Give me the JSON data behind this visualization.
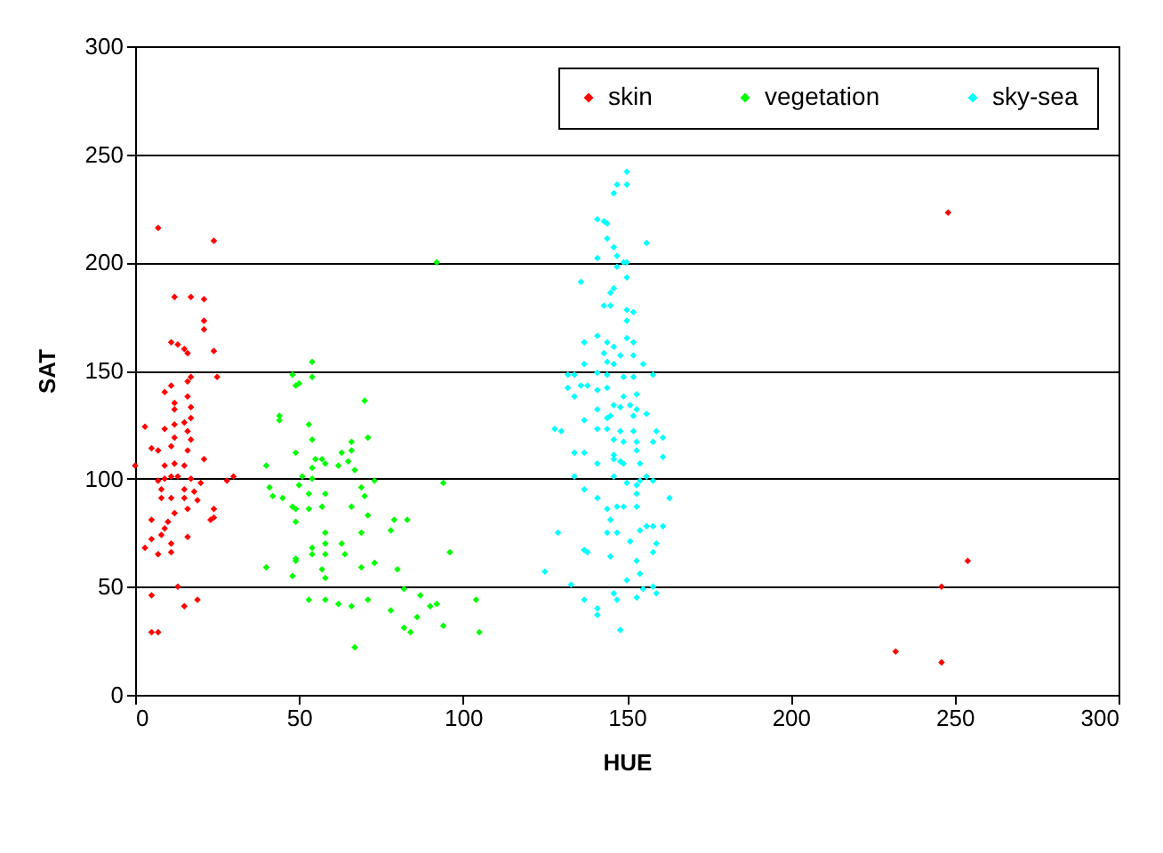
{
  "chart_data": {
    "type": "scatter",
    "xlabel": "HUE",
    "ylabel": "SAT",
    "xlim": [
      0,
      300
    ],
    "ylim": [
      0,
      300
    ],
    "xticks": [
      0,
      50,
      100,
      150,
      200,
      250,
      300
    ],
    "yticks": [
      0,
      50,
      100,
      150,
      200,
      250,
      300
    ],
    "grid": "y",
    "legend": "top right",
    "marker": "diamond",
    "series": [
      {
        "name": "skin",
        "color": "#ff0000",
        "x": [
          7,
          24,
          12,
          17,
          21,
          21,
          21,
          11,
          13,
          15,
          16,
          24,
          17,
          25,
          16,
          11,
          9,
          16,
          12,
          12,
          17,
          17,
          12,
          15,
          3,
          9,
          16,
          12,
          17,
          5,
          7,
          11,
          16,
          21,
          0,
          9,
          12,
          15,
          11,
          7,
          9,
          13,
          17,
          20,
          28,
          30,
          8,
          15,
          18,
          8,
          11,
          15,
          19,
          16,
          12,
          24,
          24,
          23,
          5,
          10,
          9,
          16,
          8,
          5,
          11,
          3,
          7,
          11,
          13,
          5,
          19,
          15,
          5,
          7,
          232,
          246,
          246,
          248,
          254
        ],
        "values": [
          216,
          210,
          184,
          184,
          183,
          173,
          169,
          163,
          162,
          160,
          158,
          159,
          147,
          147,
          145,
          143,
          140,
          138,
          135,
          132,
          133,
          128,
          125,
          126,
          124,
          123,
          122,
          119,
          118,
          114,
          113,
          115,
          113,
          109,
          106,
          106,
          107,
          106,
          101,
          99,
          100,
          101,
          100,
          98,
          99,
          101,
          95,
          95,
          94,
          91,
          91,
          91,
          90,
          86,
          84,
          86,
          82,
          81,
          81,
          80,
          77,
          73,
          74,
          72,
          70,
          68,
          65,
          66,
          50,
          46,
          44,
          41,
          29,
          29,
          20,
          15,
          50,
          223,
          62
        ]
      },
      {
        "name": "vegetation",
        "color": "#00ff00",
        "x": [
          92,
          54,
          48,
          54,
          49,
          50,
          70,
          44,
          44,
          53,
          54,
          71,
          66,
          49,
          63,
          66,
          55,
          57,
          65,
          62,
          54,
          58,
          40,
          67,
          51,
          54,
          73,
          94,
          50,
          41,
          69,
          42,
          45,
          53,
          58,
          70,
          48,
          49,
          53,
          57,
          66,
          71,
          49,
          79,
          83,
          78,
          58,
          69,
          58,
          63,
          54,
          96,
          54,
          58,
          64,
          49,
          49,
          40,
          69,
          73,
          57,
          80,
          48,
          58,
          82,
          53,
          58,
          62,
          66,
          71,
          87,
          92,
          90,
          104,
          78,
          86,
          94,
          82,
          84,
          105,
          67
        ],
        "values": [
          200,
          154,
          148,
          147,
          143,
          144,
          136,
          129,
          127,
          125,
          118,
          119,
          117,
          112,
          112,
          113,
          109,
          109,
          108,
          106,
          105,
          107,
          106,
          104,
          101,
          100,
          99,
          98,
          97,
          96,
          96,
          92,
          91,
          93,
          93,
          92,
          87,
          86,
          86,
          87,
          87,
          83,
          80,
          81,
          81,
          76,
          75,
          75,
          70,
          70,
          68,
          66,
          65,
          65,
          65,
          63,
          62,
          59,
          59,
          61,
          58,
          58,
          55,
          54,
          49,
          44,
          44,
          42,
          41,
          44,
          46,
          42,
          41,
          44,
          39,
          36,
          32,
          31,
          29,
          29,
          22
        ]
      },
      {
        "name": "sky-sea",
        "color": "#00ffff",
        "x": [
          150,
          147,
          150,
          146,
          141,
          143,
          144,
          144,
          156,
          146,
          147,
          141,
          149,
          150,
          147,
          150,
          136,
          146,
          145,
          143,
          145,
          150,
          152,
          150,
          150,
          141,
          137,
          144,
          152,
          146,
          143,
          148,
          152,
          144,
          137,
          155,
          146,
          132,
          134,
          141,
          144,
          149,
          152,
          158,
          136,
          138,
          132,
          141,
          144,
          134,
          149,
          153,
          146,
          148,
          151,
          141,
          153,
          156,
          145,
          152,
          137,
          144,
          128,
          130,
          141,
          144,
          148,
          152,
          159,
          161,
          146,
          149,
          153,
          158,
          134,
          137,
          146,
          153,
          161,
          141,
          146,
          148,
          149,
          154,
          134,
          146,
          150,
          154,
          156,
          158,
          153,
          153,
          137,
          163,
          141,
          144,
          147,
          149,
          153,
          145,
          156,
          158,
          161,
          154,
          144,
          147,
          129,
          151,
          159,
          137,
          138,
          158,
          145,
          153,
          125,
          154,
          133,
          150,
          158,
          155,
          159,
          146,
          153,
          137,
          147,
          141,
          141,
          148
        ],
        "values": [
          242,
          236,
          236,
          232,
          220,
          219,
          218,
          211,
          209,
          207,
          203,
          202,
          200,
          200,
          198,
          193,
          191,
          188,
          186,
          180,
          180,
          178,
          177,
          173,
          165,
          166,
          163,
          163,
          163,
          161,
          158,
          157,
          157,
          154,
          153,
          153,
          153,
          148,
          148,
          149,
          148,
          147,
          147,
          148,
          143,
          143,
          142,
          141,
          142,
          138,
          138,
          139,
          134,
          133,
          134,
          132,
          132,
          130,
          129,
          129,
          127,
          128,
          123,
          122,
          123,
          123,
          122,
          122,
          122,
          119,
          118,
          117,
          117,
          117,
          112,
          112,
          111,
          113,
          110,
          107,
          109,
          108,
          107,
          107,
          101,
          101,
          98,
          99,
          101,
          99,
          97,
          93,
          95,
          91,
          91,
          86,
          87,
          87,
          87,
          81,
          78,
          78,
          78,
          76,
          75,
          75,
          75,
          71,
          70,
          67,
          66,
          66,
          64,
          62,
          57,
          56,
          51,
          53,
          50,
          49,
          47,
          47,
          45,
          44,
          44,
          40,
          37,
          30
        ]
      }
    ]
  }
}
